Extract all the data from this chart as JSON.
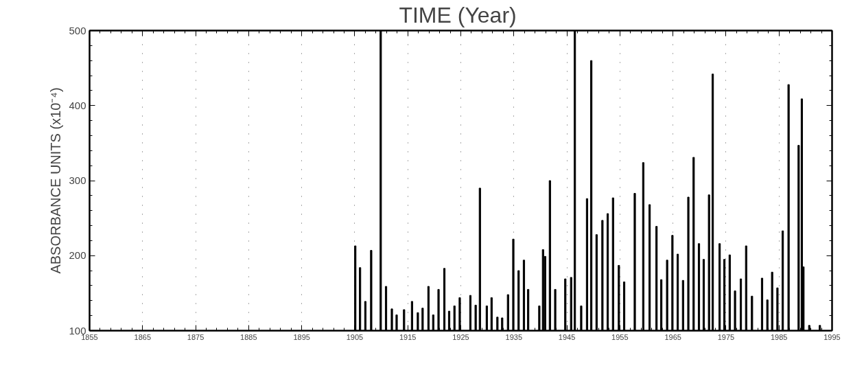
{
  "chart_data": {
    "type": "bar",
    "xlabel": "TIME  (Year)",
    "ylabel": "ABSORBANCE UNITS (x10⁻⁴)",
    "x": [
      1905.1,
      1906.0,
      1907.0,
      1908.1,
      1909.9,
      1910.9,
      1912.0,
      1912.9,
      1914.3,
      1915.8,
      1916.9,
      1917.8,
      1918.9,
      1919.8,
      1920.8,
      1921.9,
      1922.8,
      1923.8,
      1924.8,
      1926.8,
      1927.8,
      1928.6,
      1929.9,
      1930.8,
      1931.9,
      1932.8,
      1933.9,
      1934.9,
      1935.9,
      1936.9,
      1937.7,
      1939.8,
      1940.5,
      1940.9,
      1941.8,
      1942.8,
      1944.7,
      1945.8,
      1946.5,
      1947.7,
      1948.8,
      1949.6,
      1950.6,
      1951.7,
      1952.7,
      1953.7,
      1954.8,
      1955.8,
      1957.8,
      1959.4,
      1960.6,
      1961.9,
      1962.8,
      1963.9,
      1964.9,
      1965.9,
      1966.9,
      1967.9,
      1968.9,
      1969.9,
      1970.8,
      1971.8,
      1972.5,
      1973.8,
      1974.7,
      1975.7,
      1976.7,
      1977.8,
      1978.8,
      1979.9,
      1981.8,
      1982.8,
      1983.7,
      1984.7,
      1985.7,
      1986.8,
      1988.7,
      1989.3,
      1989.6,
      1990.7,
      1992.7
    ],
    "values": [
      213,
      184,
      139,
      207,
      500,
      159,
      129,
      121,
      128,
      139,
      124,
      130,
      159,
      121,
      155,
      183,
      126,
      133,
      144,
      147,
      134,
      290,
      133,
      144,
      118,
      117,
      148,
      222,
      180,
      194,
      155,
      133,
      208,
      199,
      300,
      155,
      169,
      171,
      500,
      133,
      276,
      460,
      228,
      247,
      256,
      277,
      187,
      165,
      283,
      324,
      268,
      239,
      168,
      194,
      227,
      202,
      167,
      278,
      331,
      216,
      195,
      281,
      442,
      216,
      195,
      201,
      153,
      169,
      213,
      146,
      170,
      141,
      178,
      157,
      233,
      428,
      347,
      409,
      185,
      107,
      107
    ],
    "color": "#000000",
    "xlim": [
      1855,
      1995
    ],
    "ylim": [
      100,
      500
    ],
    "xticks": [
      1855,
      1865,
      1875,
      1885,
      1895,
      1905,
      1915,
      1925,
      1935,
      1945,
      1955,
      1965,
      1975,
      1985,
      1995
    ],
    "yticks": [
      100,
      200,
      300,
      400,
      500
    ],
    "grid": "x"
  }
}
